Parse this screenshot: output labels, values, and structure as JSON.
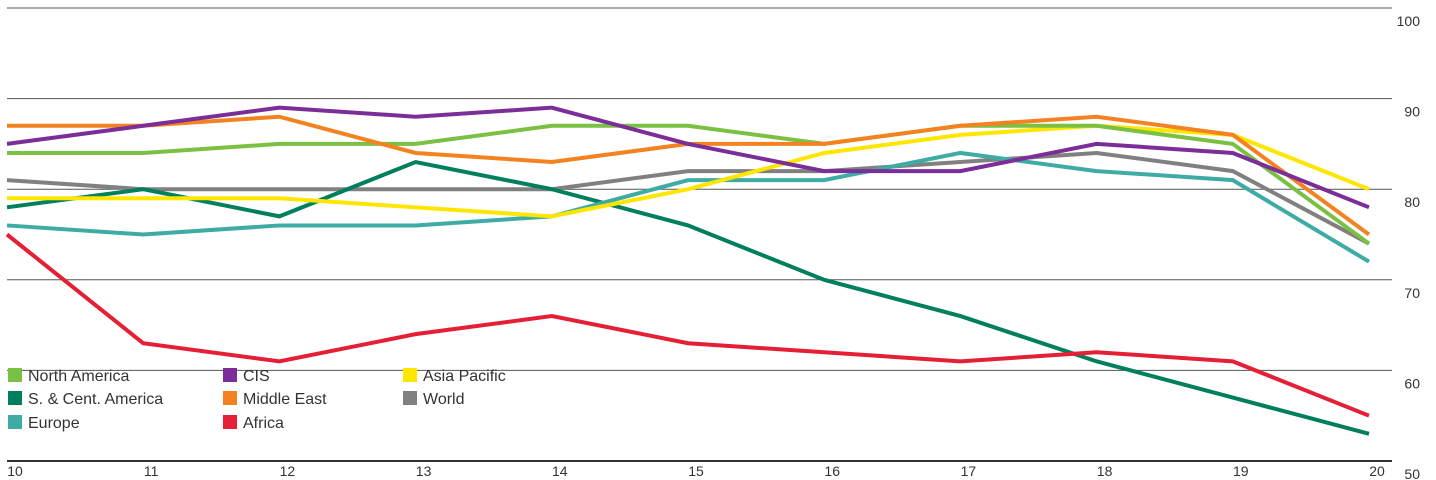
{
  "chart_data": {
    "type": "line",
    "title": "",
    "xlabel": "",
    "ylabel": "",
    "x": [
      "10",
      "11",
      "12",
      "13",
      "14",
      "15",
      "16",
      "17",
      "18",
      "19",
      "20"
    ],
    "ylim": [
      50,
      100
    ],
    "yticks": [
      "50",
      "60",
      "70",
      "80",
      "90",
      "100"
    ],
    "grid": "horizontal",
    "legend_position": "bottom-left",
    "series": [
      {
        "name": "North America",
        "color": "#7ac143",
        "values": [
          84,
          84,
          85,
          85,
          87,
          87,
          85,
          87,
          87,
          85,
          74
        ]
      },
      {
        "name": "S. & Cent. America",
        "color": "#007f5f",
        "values": [
          78,
          80,
          77,
          83,
          80,
          76,
          70,
          66,
          61,
          57,
          53
        ]
      },
      {
        "name": "Europe",
        "color": "#3eaba5",
        "values": [
          76,
          75,
          76,
          76,
          77,
          81,
          81,
          84,
          82,
          81,
          72
        ]
      },
      {
        "name": "CIS",
        "color": "#7b2d98",
        "values": [
          85,
          87,
          89,
          88,
          89,
          85,
          82,
          82,
          85,
          84,
          78
        ]
      },
      {
        "name": "Middle East",
        "color": "#f58220",
        "values": [
          87,
          87,
          88,
          84,
          83,
          85,
          85,
          87,
          88,
          86,
          75
        ]
      },
      {
        "name": "Africa",
        "color": "#e41f36",
        "values": [
          75,
          63,
          61,
          64,
          66,
          63,
          62,
          61,
          62,
          61,
          55
        ]
      },
      {
        "name": "Asia Pacific",
        "color": "#ffe600",
        "values": [
          79,
          79,
          79,
          78,
          77,
          80,
          84,
          86,
          87,
          86,
          80
        ]
      },
      {
        "name": "World",
        "color": "#808080",
        "values": [
          81,
          80,
          80,
          80,
          80,
          82,
          82,
          83,
          84,
          82,
          74
        ]
      }
    ]
  }
}
